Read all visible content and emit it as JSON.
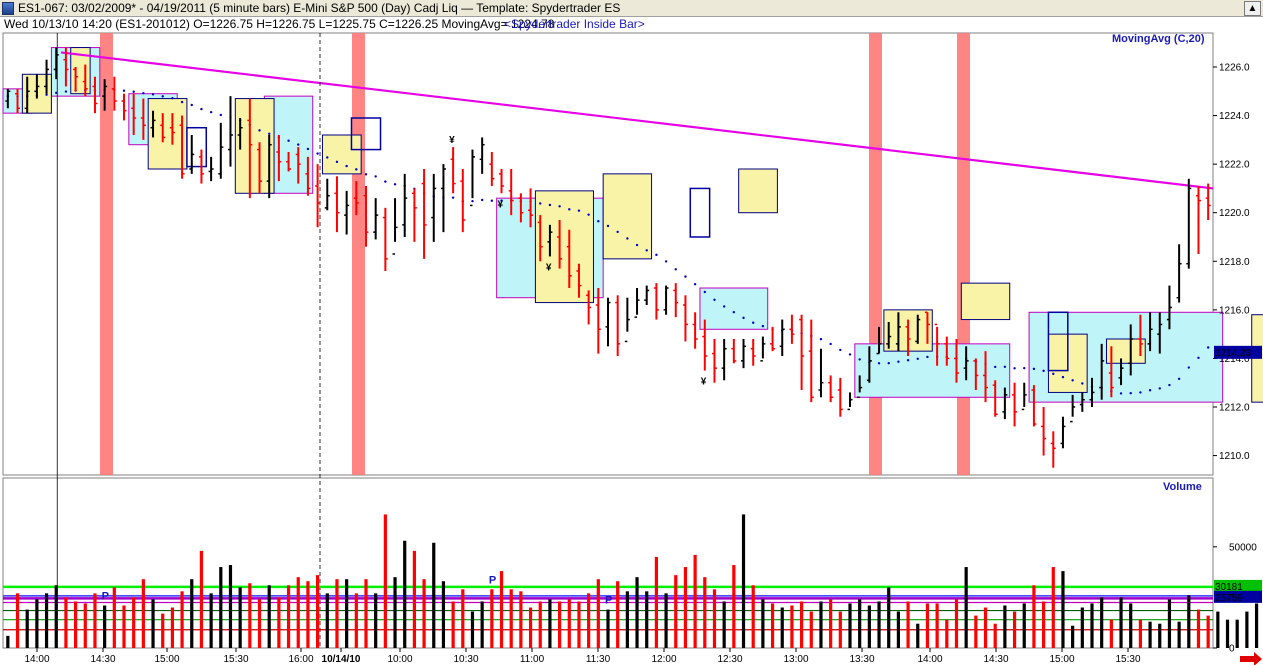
{
  "window": {
    "title": "ES1-067:  03/02/2009* - 04/19/2011  (5 minute bars)    E-Mini S&P 500 (Day) Cadj Liq  —  Template: Spydertrader ES",
    "scroll_up_icon": "arrow-up-icon"
  },
  "info": {
    "text": "Wed   10/13/10 14:20 (ES1-201012)  O=1226.75  H=1226.75  L=1225.75  C=1226.25   MovingAvg= 1224.78",
    "study": "<Spydertrader Inside Bar>"
  },
  "colors": {
    "up": "#000000",
    "down": "#ff0000",
    "trend": "#e600e6",
    "ma": "#0000c8",
    "highlight": "#ff7878",
    "cyan_box": "#bff5f8",
    "yellow_box": "#f8f3a6",
    "green_line": "#00ee00",
    "purple_line": "#a000c8"
  },
  "chart_data": [
    {
      "type": "candlestick",
      "title": "MovingAvg (C,20)",
      "y_ticks": [
        "1210.0",
        "1212.0",
        "1214.0",
        "1216.0",
        "1218.0",
        "1220.0",
        "1222.0",
        "1224.0",
        "1226.0"
      ],
      "ylim": [
        1209.2,
        1227.4
      ],
      "last_price": "1214.23",
      "x_ticks": [
        "14:00",
        "14:30",
        "15:00",
        "15:30",
        "16:00",
        "10/14/10",
        "10:00",
        "10:30",
        "11:00",
        "11:30",
        "12:00",
        "12:30",
        "13:00",
        "13:30",
        "14:00",
        "14:30",
        "15:00",
        "15:30"
      ],
      "trendline": [
        1226.6,
        1221.0
      ],
      "moving_average_start": 1224.8,
      "bars": [
        [
          1224.6,
          1225.0,
          1225.1,
          1224.3
        ],
        [
          1224.9,
          1224.3,
          1225.1,
          1224.1
        ],
        [
          1224.3,
          1225.0,
          1225.6,
          1224.1
        ],
        [
          1225.0,
          1225.2,
          1225.7,
          1224.7
        ],
        [
          1225.2,
          1225.9,
          1226.3,
          1224.9
        ],
        [
          1225.9,
          1226.5,
          1226.8,
          1225.5
        ],
        [
          1226.3,
          1225.9,
          1226.8,
          1225.2
        ],
        [
          1225.9,
          1225.6,
          1226.0,
          1225.0
        ],
        [
          1225.4,
          1225.1,
          1226.1,
          1224.8
        ],
        [
          1225.2,
          1224.5,
          1225.6,
          1224.1
        ],
        [
          1224.8,
          1225.2,
          1225.5,
          1224.2
        ],
        [
          1225.1,
          1224.6,
          1225.6,
          1224.2
        ],
        [
          1224.6,
          1224.2,
          1224.9,
          1223.8
        ],
        [
          1224.3,
          1223.9,
          1224.9,
          1223.2
        ],
        [
          1223.9,
          1223.6,
          1224.7,
          1223.0
        ],
        [
          1223.5,
          1223.8,
          1224.2,
          1223.1
        ],
        [
          1223.6,
          1223.1,
          1224.1,
          1222.9
        ],
        [
          1223.5,
          1223.3,
          1224.1,
          1222.8
        ],
        [
          1223.6,
          1221.6,
          1224.0,
          1221.4
        ],
        [
          1221.8,
          1222.4,
          1223.2,
          1221.6
        ],
        [
          1222.3,
          1221.6,
          1222.6,
          1221.2
        ],
        [
          1221.7,
          1221.8,
          1222.3,
          1221.3
        ],
        [
          1221.6,
          1222.7,
          1223.7,
          1221.4
        ],
        [
          1222.6,
          1223.2,
          1224.8,
          1221.9
        ],
        [
          1223.2,
          1223.5,
          1223.9,
          1222.6
        ],
        [
          1223.8,
          1222.8,
          1224.7,
          1220.6
        ],
        [
          1222.6,
          1221.3,
          1222.9,
          1220.8
        ],
        [
          1221.3,
          1222.8,
          1223.2,
          1220.6
        ],
        [
          1222.5,
          1222.1,
          1223.2,
          1221.3
        ],
        [
          1222.1,
          1221.8,
          1222.5,
          1221.7
        ],
        [
          1222.4,
          1222.0,
          1222.7,
          1221.2
        ],
        [
          1221.6,
          1221.0,
          1222.3,
          1220.7
        ],
        [
          1221.1,
          1220.4,
          1222.0,
          1219.4
        ],
        [
          1220.2,
          1220.7,
          1221.4,
          1220.1
        ],
        [
          1220.8,
          1220.0,
          1221.5,
          1219.2
        ],
        [
          1219.9,
          1220.3,
          1220.9,
          1219.1
        ],
        [
          1220.6,
          1220.4,
          1221.3,
          1219.9
        ],
        [
          1220.7,
          1219.2,
          1221.1,
          1218.6
        ],
        [
          1219.2,
          1219.9,
          1220.6,
          1218.9
        ],
        [
          1219.8,
          1218.1,
          1220.2,
          1217.6
        ],
        [
          1218.3,
          1219.4,
          1220.6,
          1218.8
        ],
        [
          1219.5,
          1220.6,
          1221.6,
          1219.0
        ],
        [
          1220.8,
          1220.2,
          1221.0,
          1218.8
        ],
        [
          1221.2,
          1219.5,
          1221.8,
          1218.1
        ],
        [
          1219.8,
          1221.0,
          1221.6,
          1218.8
        ],
        [
          1221.0,
          1221.8,
          1222.0,
          1219.2
        ],
        [
          1222.2,
          1221.2,
          1222.7,
          1220.8
        ],
        [
          1221.3,
          1219.7,
          1221.8,
          1219.2
        ],
        [
          1220.3,
          1222.3,
          1222.6,
          1220.6
        ],
        [
          1222.2,
          1222.8,
          1223.1,
          1221.6
        ],
        [
          1222.0,
          1221.4,
          1222.5,
          1221.1
        ],
        [
          1221.6,
          1221.1,
          1221.8,
          1220.8
        ],
        [
          1220.9,
          1220.5,
          1221.8,
          1219.9
        ],
        [
          1220.6,
          1220.0,
          1220.8,
          1219.6
        ],
        [
          1220.1,
          1219.9,
          1221.0,
          1219.4
        ],
        [
          1219.6,
          1218.6,
          1219.9,
          1218.0
        ],
        [
          1218.8,
          1219.2,
          1219.5,
          1218.2
        ],
        [
          1219.0,
          1218.1,
          1219.7,
          1217.7
        ],
        [
          1218.6,
          1217.4,
          1219.3,
          1216.9
        ],
        [
          1217.6,
          1217.0,
          1217.9,
          1216.5
        ],
        [
          1216.6,
          1216.1,
          1216.8,
          1215.4
        ],
        [
          1216.2,
          1215.2,
          1216.9,
          1214.2
        ],
        [
          1215.3,
          1216.3,
          1216.5,
          1214.5
        ],
        [
          1216.3,
          1214.6,
          1216.6,
          1214.1
        ],
        [
          1214.7,
          1215.6,
          1216.5,
          1215.1
        ],
        [
          1215.7,
          1216.4,
          1216.9,
          1215.8
        ],
        [
          1216.4,
          1216.8,
          1217.0,
          1216.2
        ],
        [
          1216.9,
          1216.0,
          1217.1,
          1215.6
        ],
        [
          1216.0,
          1216.9,
          1217.0,
          1215.8
        ],
        [
          1216.8,
          1216.3,
          1217.1,
          1215.7
        ],
        [
          1216.2,
          1215.4,
          1216.6,
          1214.7
        ],
        [
          1215.4,
          1214.8,
          1215.9,
          1214.4
        ],
        [
          1214.9,
          1214.1,
          1215.6,
          1213.5
        ],
        [
          1214.2,
          1213.6,
          1214.8,
          1213.0
        ],
        [
          1213.6,
          1214.4,
          1214.8,
          1213.1
        ],
        [
          1214.4,
          1213.9,
          1214.8,
          1213.8
        ],
        [
          1213.9,
          1214.5,
          1214.8,
          1213.6
        ],
        [
          1214.4,
          1214.1,
          1214.8,
          1213.7
        ],
        [
          1213.9,
          1214.6,
          1214.9,
          1214.0
        ],
        [
          1214.6,
          1214.4,
          1215.3,
          1214.3
        ],
        [
          1214.5,
          1215.2,
          1215.6,
          1214.1
        ],
        [
          1215.2,
          1215.0,
          1215.8,
          1214.6
        ],
        [
          1215.6,
          1214.1,
          1215.8,
          1212.7
        ],
        [
          1214.3,
          1212.4,
          1215.6,
          1212.2
        ],
        [
          1212.7,
          1213.0,
          1214.4,
          1212.4
        ],
        [
          1213.0,
          1212.4,
          1213.3,
          1212.2
        ],
        [
          1212.7,
          1211.9,
          1213.2,
          1211.6
        ],
        [
          1211.9,
          1212.3,
          1212.6,
          1212.0
        ],
        [
          1212.4,
          1212.8,
          1213.3,
          1212.6
        ],
        [
          1213.1,
          1213.9,
          1214.5,
          1213.0
        ],
        [
          1214.2,
          1214.6,
          1215.3,
          1214.2
        ],
        [
          1214.6,
          1214.9,
          1215.5,
          1214.4
        ],
        [
          1214.6,
          1215.3,
          1215.9,
          1214.3
        ],
        [
          1215.3,
          1214.8,
          1215.6,
          1214.1
        ],
        [
          1214.7,
          1215.6,
          1215.8,
          1214.6
        ],
        [
          1215.9,
          1215.4,
          1215.9,
          1214.6
        ],
        [
          1215.4,
          1214.6,
          1215.3,
          1213.7
        ],
        [
          1214.6,
          1214.0,
          1214.9,
          1213.7
        ],
        [
          1214.0,
          1213.4,
          1214.8,
          1213.0
        ],
        [
          1213.6,
          1213.9,
          1214.5,
          1213.1
        ],
        [
          1213.9,
          1213.3,
          1214.0,
          1212.7
        ],
        [
          1213.3,
          1212.8,
          1214.3,
          1212.2
        ],
        [
          1212.9,
          1211.7,
          1213.1,
          1211.6
        ],
        [
          1211.8,
          1212.5,
          1212.8,
          1211.5
        ],
        [
          1212.5,
          1211.8,
          1213.0,
          1211.2
        ],
        [
          1211.9,
          1212.5,
          1213.0,
          1212.0
        ],
        [
          1212.7,
          1211.3,
          1212.9,
          1211.2
        ],
        [
          1211.2,
          1210.7,
          1212.0,
          1210.0
        ],
        [
          1210.5,
          1210.3,
          1211.0,
          1209.5
        ],
        [
          1210.5,
          1211.2,
          1211.6,
          1210.3
        ],
        [
          1211.4,
          1212.0,
          1212.5,
          1211.6
        ],
        [
          1212.1,
          1212.3,
          1212.6,
          1211.8
        ],
        [
          1212.3,
          1212.6,
          1213.2,
          1212.0
        ],
        [
          1212.8,
          1213.9,
          1214.6,
          1212.3
        ],
        [
          1213.4,
          1212.8,
          1214.5,
          1212.4
        ],
        [
          1213.2,
          1213.6,
          1214.0,
          1212.9
        ],
        [
          1213.8,
          1214.8,
          1215.4,
          1213.3
        ],
        [
          1214.8,
          1214.6,
          1215.8,
          1214.1
        ],
        [
          1214.6,
          1215.2,
          1215.9,
          1214.3
        ],
        [
          1215.0,
          1215.4,
          1215.9,
          1214.2
        ],
        [
          1215.6,
          1216.1,
          1217.0,
          1215.2
        ],
        [
          1216.5,
          1217.9,
          1218.7,
          1216.3
        ],
        [
          1217.9,
          1221.0,
          1221.4,
          1217.7
        ],
        [
          1220.7,
          1220.5,
          1221.1,
          1218.3
        ],
        [
          1220.6,
          1220.3,
          1221.2,
          1219.7
        ]
      ],
      "signals": [
        {
          "bar": 46,
          "type": "short",
          "glyph": "¥"
        },
        {
          "bar": 51,
          "type": "long",
          "glyph": "¥"
        },
        {
          "bar": 56,
          "type": "long",
          "glyph": "¥"
        },
        {
          "bar": 72,
          "type": "long",
          "glyph": "¥"
        },
        {
          "bar": 159,
          "type": "long",
          "glyph": "¥"
        },
        {
          "bar": 168,
          "type": "long",
          "glyph": "¥"
        },
        {
          "bar": 172,
          "type": "short",
          "glyph": "¥"
        },
        {
          "bar": 185,
          "type": "long",
          "glyph": "¥"
        },
        {
          "bar": 205,
          "type": "long",
          "glyph": "¥"
        },
        {
          "bar": 244,
          "type": "short",
          "glyph": "¥"
        }
      ]
    },
    {
      "type": "bar",
      "title": "Volume",
      "y_ticks": [
        "0",
        "50000"
      ],
      "ylim": [
        0,
        84000
      ],
      "right_labels": [
        "30181",
        "25759"
      ],
      "levels": [
        30181,
        25759
      ],
      "p_label": "P",
      "values": [
        6000,
        27000,
        19000,
        24000,
        27000,
        31000,
        25000,
        23000,
        22000,
        27000,
        21000,
        30000,
        21000,
        25000,
        34000,
        24000,
        17000,
        20000,
        28000,
        34000,
        48000,
        27000,
        40000,
        41000,
        30000,
        32000,
        24000,
        31000,
        25000,
        31000,
        35000,
        33000,
        36000,
        27000,
        34000,
        34000,
        27000,
        34000,
        27000,
        66000,
        35000,
        53000,
        48000,
        34000,
        52000,
        33000,
        23000,
        29000,
        18000,
        23000,
        29000,
        38000,
        29000,
        28000,
        20000,
        23000,
        24000,
        23000,
        24000,
        23000,
        27000,
        34000,
        19000,
        33000,
        28000,
        35000,
        28000,
        45000,
        27000,
        36000,
        40000,
        46000,
        35000,
        29000,
        23000,
        41000,
        66000,
        31000,
        24000,
        22000,
        20000,
        21000,
        23000,
        18000,
        23000,
        24000,
        18000,
        22000,
        24000,
        21000,
        23000,
        30000,
        18000,
        23000,
        12000,
        22000,
        22000,
        14000,
        24000,
        40000,
        16000,
        20000,
        12000,
        21000,
        18000,
        22000,
        31000,
        23000,
        40000,
        38000,
        11000,
        20000,
        22000,
        25000,
        14000,
        25000,
        22000,
        14000,
        13000,
        12000,
        24000,
        13000,
        26000,
        19000,
        16000,
        18000,
        14000,
        14000,
        18000,
        22000,
        12000,
        15000,
        20000,
        14000,
        19000,
        16000,
        16000,
        24000,
        26000,
        24000,
        18000,
        22000,
        24000,
        20000,
        14000,
        21000,
        22000,
        26000,
        30000,
        30000,
        24000,
        23000,
        32000,
        20000,
        24000,
        24000,
        18000,
        24000,
        32000,
        35000,
        27000,
        34000,
        32000,
        64000,
        22000,
        28000,
        23000,
        50000,
        47000,
        60000,
        33000,
        32000,
        30000,
        26000
      ]
    }
  ]
}
